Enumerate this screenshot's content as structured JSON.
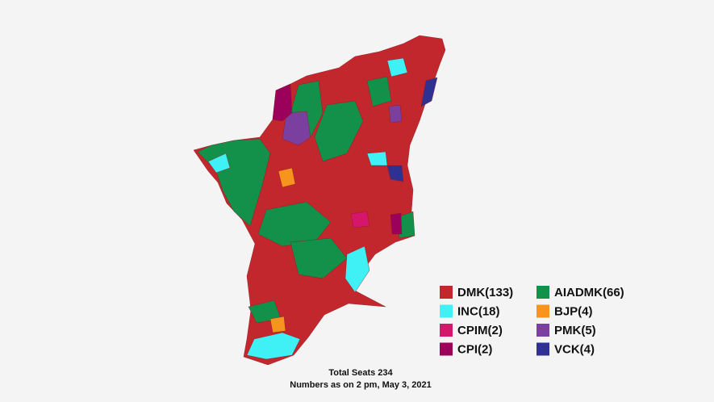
{
  "legend": [
    {
      "label": "DMK(133)",
      "color": "#c1272d"
    },
    {
      "label": "AIADMK(66)",
      "color": "#13904a"
    },
    {
      "label": "INC(18)",
      "color": "#3ff0f5"
    },
    {
      "label": "BJP(4)",
      "color": "#f7941d"
    },
    {
      "label": "CPIM(2)",
      "color": "#d5166a"
    },
    {
      "label": "PMK(5)",
      "color": "#7b3fa0"
    },
    {
      "label": "CPI(2)",
      "color": "#9b005a"
    },
    {
      "label": "VCK(4)",
      "color": "#2e3192"
    }
  ],
  "caption": [
    "Total Seats 234",
    "Numbers as on 2 pm, May 3, 2021"
  ]
}
